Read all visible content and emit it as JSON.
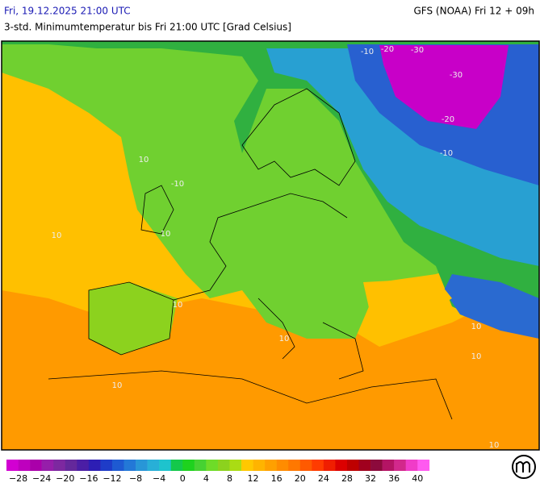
{
  "header": {
    "left": "Fri, 19.12.2025 21:00 UTC",
    "right": "GFS (NOAA) Fri 12 + 09h",
    "subtitle": "3-std. Minimumtemperatur bis Fri 21:00 UTC [Grad Celsius]"
  },
  "map": {
    "contour_labels": [
      "-10",
      "-20",
      "-30",
      "-30",
      "-20",
      "-10",
      "-10",
      "10",
      "10",
      "10",
      "10",
      "10",
      "10",
      "10",
      "10",
      "10"
    ]
  },
  "legend": {
    "colors": [
      "#d200d2",
      "#be00be",
      "#aa00aa",
      "#961eaa",
      "#7d28a0",
      "#64289b",
      "#4b1ea5",
      "#2d1eb4",
      "#1e3cc8",
      "#1e5ad2",
      "#2378d7",
      "#2896d7",
      "#28afd7",
      "#1ec3cd",
      "#14c84b",
      "#1ed21e",
      "#46d232",
      "#6edc28",
      "#8cd21e",
      "#aadc14",
      "#ffc800",
      "#ffb400",
      "#ffa000",
      "#ff8c00",
      "#ff7800",
      "#ff5a00",
      "#ff3c00",
      "#f01e00",
      "#dc0000",
      "#be0000",
      "#a0001e",
      "#8c0a3c",
      "#b41464",
      "#d2288c",
      "#f03cc8",
      "#ff5af0"
    ],
    "labels": [
      "−28",
      "−24",
      "−20",
      "−16",
      "−12",
      "−8",
      "−4",
      "0",
      "4",
      "8",
      "12",
      "16",
      "20",
      "24",
      "28",
      "32",
      "36",
      "40"
    ]
  }
}
